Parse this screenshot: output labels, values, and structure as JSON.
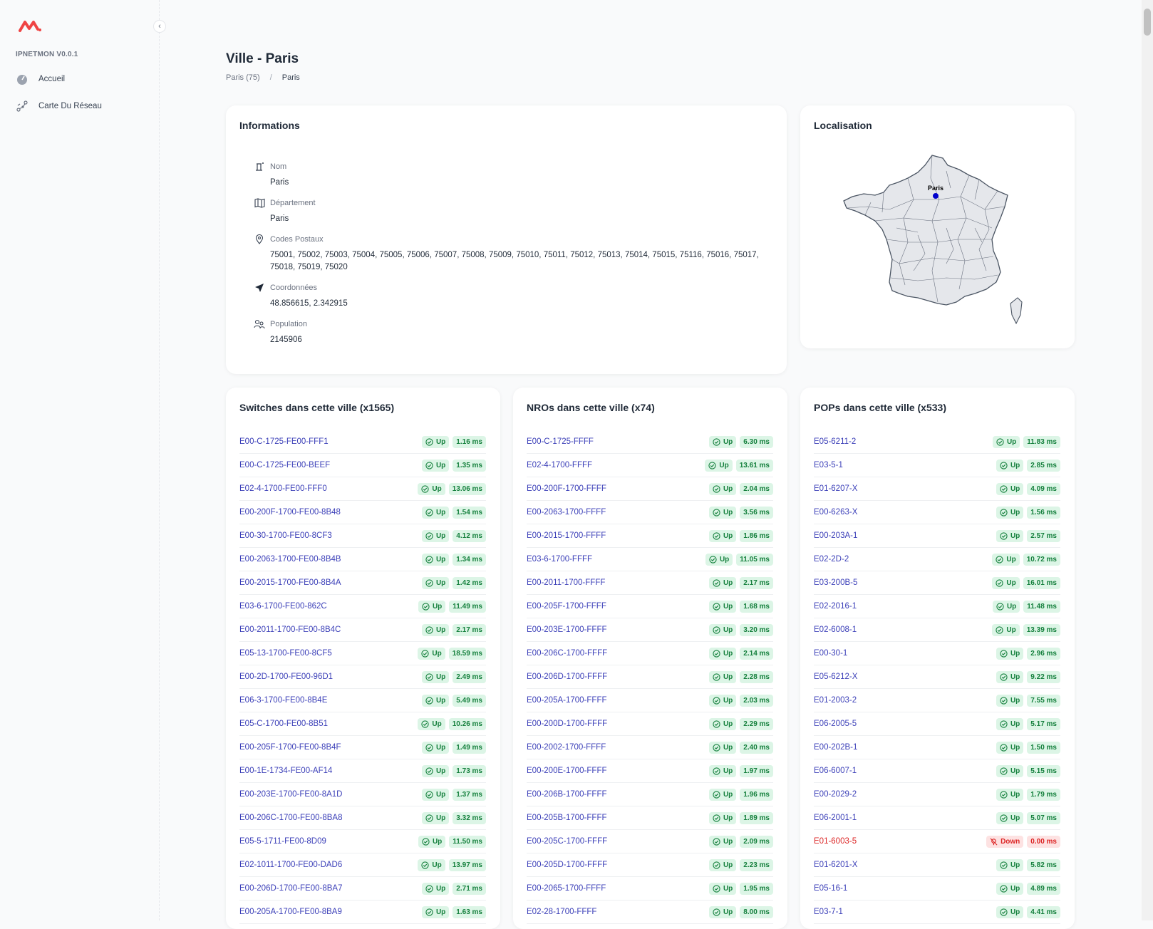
{
  "sidebar": {
    "version": "IPNETMON V0.0.1",
    "items": [
      {
        "label": "Accueil",
        "icon": "gauge-icon"
      },
      {
        "label": "Carte Du Réseau",
        "icon": "network-icon"
      }
    ]
  },
  "header": {
    "title": "Ville - Paris",
    "breadcrumb": [
      "Paris (75)",
      "Paris"
    ]
  },
  "info": {
    "title": "Informations",
    "nom_label": "Nom",
    "nom_value": "Paris",
    "dept_label": "Département",
    "dept_value": "Paris",
    "cp_label": "Codes Postaux",
    "cp_value": "75001, 75002, 75003, 75004, 75005, 75006, 75007, 75008, 75009, 75010, 75011, 75012, 75013, 75014, 75015, 75116, 75016, 75017, 75018, 75019, 75020",
    "coord_label": "Coordonnées",
    "coord_value": "48.856615, 2.342915",
    "pop_label": "Population",
    "pop_value": "2145906"
  },
  "localisation": {
    "title": "Localisation",
    "marker_label": "Paris"
  },
  "switches": {
    "title": "Switches dans cette ville (x1565)",
    "rows": [
      {
        "name": "E00-C-1725-FE00-FFF1",
        "status": "Up",
        "ms": "1.16 ms"
      },
      {
        "name": "E00-C-1725-FE00-BEEF",
        "status": "Up",
        "ms": "1.35 ms"
      },
      {
        "name": "E02-4-1700-FE00-FFF0",
        "status": "Up",
        "ms": "13.06 ms"
      },
      {
        "name": "E00-200F-1700-FE00-8B48",
        "status": "Up",
        "ms": "1.54 ms"
      },
      {
        "name": "E00-30-1700-FE00-8CF3",
        "status": "Up",
        "ms": "4.12 ms"
      },
      {
        "name": "E00-2063-1700-FE00-8B4B",
        "status": "Up",
        "ms": "1.34 ms"
      },
      {
        "name": "E00-2015-1700-FE00-8B4A",
        "status": "Up",
        "ms": "1.42 ms"
      },
      {
        "name": "E03-6-1700-FE00-862C",
        "status": "Up",
        "ms": "11.49 ms"
      },
      {
        "name": "E00-2011-1700-FE00-8B4C",
        "status": "Up",
        "ms": "2.17 ms"
      },
      {
        "name": "E05-13-1700-FE00-8CF5",
        "status": "Up",
        "ms": "18.59 ms"
      },
      {
        "name": "E00-2D-1700-FE00-96D1",
        "status": "Up",
        "ms": "2.49 ms"
      },
      {
        "name": "E06-3-1700-FE00-8B4E",
        "status": "Up",
        "ms": "5.49 ms"
      },
      {
        "name": "E05-C-1700-FE00-8B51",
        "status": "Up",
        "ms": "10.26 ms"
      },
      {
        "name": "E00-205F-1700-FE00-8B4F",
        "status": "Up",
        "ms": "1.49 ms"
      },
      {
        "name": "E00-1E-1734-FE00-AF14",
        "status": "Up",
        "ms": "1.73 ms"
      },
      {
        "name": "E00-203E-1700-FE00-8A1D",
        "status": "Up",
        "ms": "1.37 ms"
      },
      {
        "name": "E00-206C-1700-FE00-8BA8",
        "status": "Up",
        "ms": "3.32 ms"
      },
      {
        "name": "E05-5-1711-FE00-8D09",
        "status": "Up",
        "ms": "11.50 ms"
      },
      {
        "name": "E02-1011-1700-FE00-DAD6",
        "status": "Up",
        "ms": "13.97 ms"
      },
      {
        "name": "E00-206D-1700-FE00-8BA7",
        "status": "Up",
        "ms": "2.71 ms"
      },
      {
        "name": "E00-205A-1700-FE00-8BA9",
        "status": "Up",
        "ms": "1.63 ms"
      }
    ]
  },
  "nros": {
    "title": "NROs dans cette ville (x74)",
    "rows": [
      {
        "name": "E00-C-1725-FFFF",
        "status": "Up",
        "ms": "6.30 ms"
      },
      {
        "name": "E02-4-1700-FFFF",
        "status": "Up",
        "ms": "13.61 ms"
      },
      {
        "name": "E00-200F-1700-FFFF",
        "status": "Up",
        "ms": "2.04 ms"
      },
      {
        "name": "E00-2063-1700-FFFF",
        "status": "Up",
        "ms": "3.56 ms"
      },
      {
        "name": "E00-2015-1700-FFFF",
        "status": "Up",
        "ms": "1.86 ms"
      },
      {
        "name": "E03-6-1700-FFFF",
        "status": "Up",
        "ms": "11.05 ms"
      },
      {
        "name": "E00-2011-1700-FFFF",
        "status": "Up",
        "ms": "2.17 ms"
      },
      {
        "name": "E00-205F-1700-FFFF",
        "status": "Up",
        "ms": "1.68 ms"
      },
      {
        "name": "E00-203E-1700-FFFF",
        "status": "Up",
        "ms": "3.20 ms"
      },
      {
        "name": "E00-206C-1700-FFFF",
        "status": "Up",
        "ms": "2.14 ms"
      },
      {
        "name": "E00-206D-1700-FFFF",
        "status": "Up",
        "ms": "2.28 ms"
      },
      {
        "name": "E00-205A-1700-FFFF",
        "status": "Up",
        "ms": "2.03 ms"
      },
      {
        "name": "E00-200D-1700-FFFF",
        "status": "Up",
        "ms": "2.29 ms"
      },
      {
        "name": "E00-2002-1700-FFFF",
        "status": "Up",
        "ms": "2.40 ms"
      },
      {
        "name": "E00-200E-1700-FFFF",
        "status": "Up",
        "ms": "1.97 ms"
      },
      {
        "name": "E00-206B-1700-FFFF",
        "status": "Up",
        "ms": "1.96 ms"
      },
      {
        "name": "E00-205B-1700-FFFF",
        "status": "Up",
        "ms": "1.89 ms"
      },
      {
        "name": "E00-205C-1700-FFFF",
        "status": "Up",
        "ms": "2.09 ms"
      },
      {
        "name": "E00-205D-1700-FFFF",
        "status": "Up",
        "ms": "2.23 ms"
      },
      {
        "name": "E00-2065-1700-FFFF",
        "status": "Up",
        "ms": "1.95 ms"
      },
      {
        "name": "E02-28-1700-FFFF",
        "status": "Up",
        "ms": "8.00 ms"
      }
    ]
  },
  "pops": {
    "title": "POPs dans cette ville (x533)",
    "rows": [
      {
        "name": "E05-6211-2",
        "status": "Up",
        "ms": "11.83 ms"
      },
      {
        "name": "E03-5-1",
        "status": "Up",
        "ms": "2.85 ms"
      },
      {
        "name": "E01-6207-X",
        "status": "Up",
        "ms": "4.09 ms"
      },
      {
        "name": "E00-6263-X",
        "status": "Up",
        "ms": "1.56 ms"
      },
      {
        "name": "E00-203A-1",
        "status": "Up",
        "ms": "2.57 ms"
      },
      {
        "name": "E02-2D-2",
        "status": "Up",
        "ms": "10.72 ms"
      },
      {
        "name": "E03-200B-5",
        "status": "Up",
        "ms": "16.01 ms"
      },
      {
        "name": "E02-2016-1",
        "status": "Up",
        "ms": "11.48 ms"
      },
      {
        "name": "E02-6008-1",
        "status": "Up",
        "ms": "13.39 ms"
      },
      {
        "name": "E00-30-1",
        "status": "Up",
        "ms": "2.96 ms"
      },
      {
        "name": "E05-6212-X",
        "status": "Up",
        "ms": "9.22 ms"
      },
      {
        "name": "E01-2003-2",
        "status": "Up",
        "ms": "7.55 ms"
      },
      {
        "name": "E06-2005-5",
        "status": "Up",
        "ms": "5.17 ms"
      },
      {
        "name": "E00-202B-1",
        "status": "Up",
        "ms": "1.50 ms"
      },
      {
        "name": "E06-6007-1",
        "status": "Up",
        "ms": "5.15 ms"
      },
      {
        "name": "E00-2029-2",
        "status": "Up",
        "ms": "1.79 ms"
      },
      {
        "name": "E06-2001-1",
        "status": "Up",
        "ms": "5.07 ms"
      },
      {
        "name": "E01-6003-5",
        "status": "Down",
        "ms": "0.00 ms"
      },
      {
        "name": "E01-6201-X",
        "status": "Up",
        "ms": "5.82 ms"
      },
      {
        "name": "E05-16-1",
        "status": "Up",
        "ms": "4.89 ms"
      },
      {
        "name": "E03-7-1",
        "status": "Up",
        "ms": "4.41 ms"
      }
    ]
  },
  "colors": {
    "link": "#3b3fb8",
    "up_bg": "#dcf5e6",
    "up_fg": "#15803d",
    "down_bg": "#fde2e2",
    "down_fg": "#dc2626",
    "logo": "#ef4444"
  }
}
